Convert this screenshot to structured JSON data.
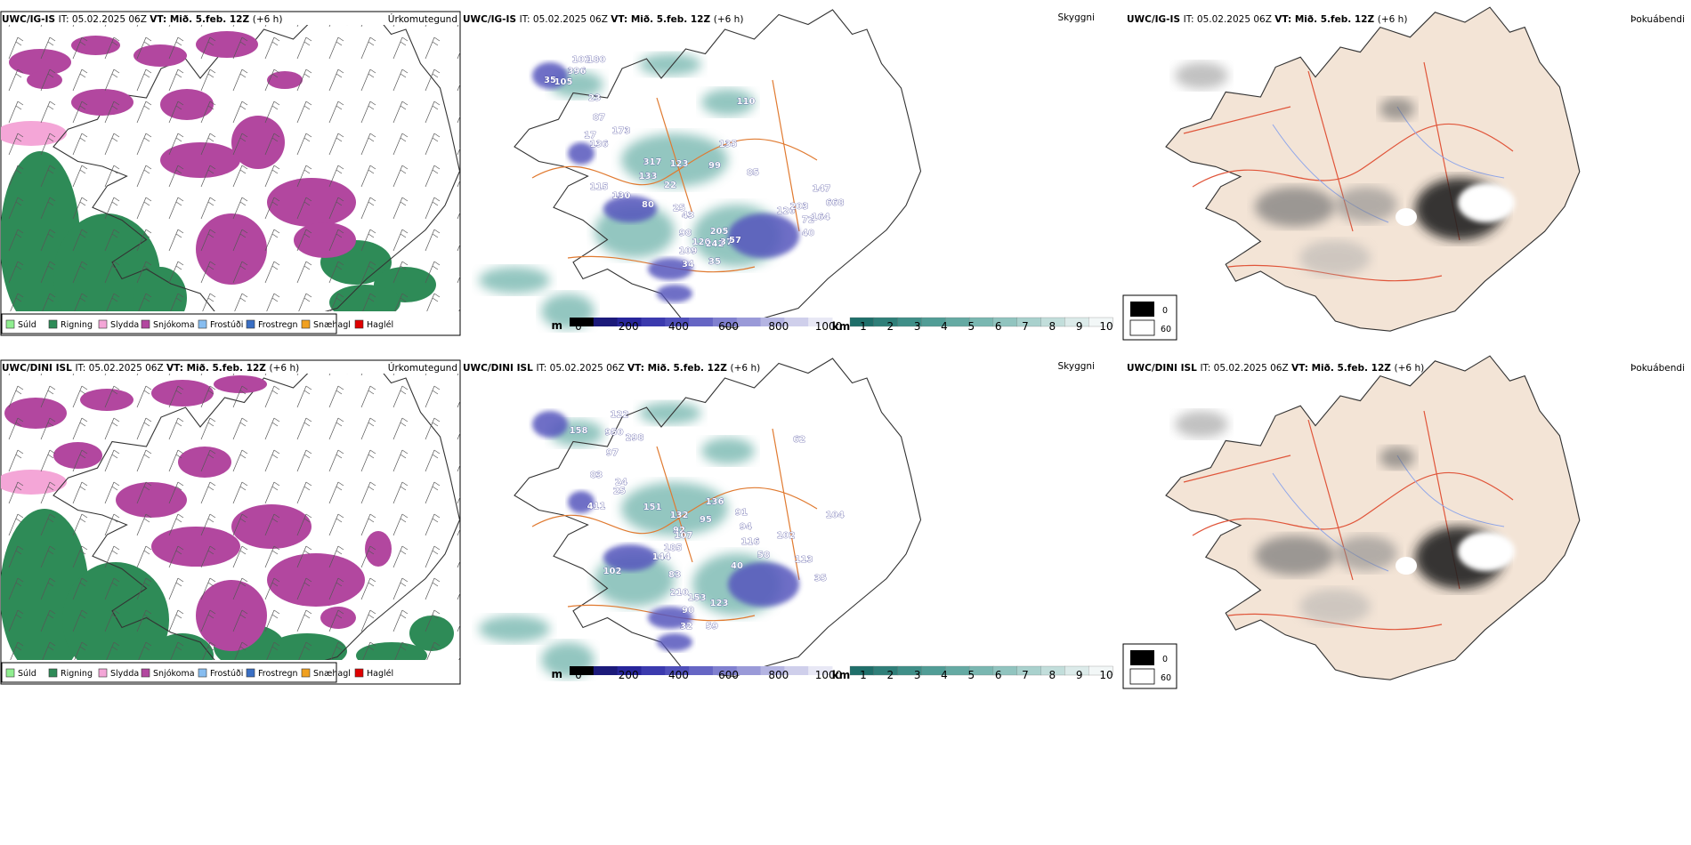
{
  "rows": [
    {
      "model": "UWC/IG-IS",
      "it_label": "IT:",
      "it_value": "05.02.2025 06Z",
      "vt_label": "VT:",
      "vt_value": "Mið. 5.feb. 12Z",
      "offset": "(+6 h)",
      "cloud_labels": [
        "101",
        "180",
        "396",
        "35",
        "105",
        "23",
        "87",
        "17",
        "173",
        "136",
        "317",
        "123",
        "99",
        "133",
        "22",
        "110",
        "85",
        "115",
        "130",
        "80",
        "25",
        "135",
        "43",
        "147",
        "126",
        "203",
        "72",
        "164",
        "668",
        "205",
        "98",
        "120",
        "242",
        "37",
        "57",
        "40",
        "109",
        "34",
        "35"
      ]
    },
    {
      "model": "UWC/DINI ISL",
      "it_label": "IT:",
      "it_value": "05.02.2025 06Z",
      "vt_label": "VT:",
      "vt_value": "Mið. 5.feb. 12Z",
      "offset": "(+6 h)",
      "cloud_labels": [
        "122",
        "158",
        "950",
        "298",
        "97",
        "83",
        "25",
        "411",
        "24",
        "151",
        "132",
        "95",
        "91",
        "94",
        "92",
        "107",
        "136",
        "62",
        "116",
        "144",
        "102",
        "83",
        "58",
        "113",
        "35",
        "210",
        "153",
        "123",
        "102",
        "90",
        "32",
        "59",
        "104",
        "185",
        "40"
      ]
    }
  ],
  "panel_titles": {
    "precip": "Úrkomutegund",
    "cloud": "Skyggni",
    "fog": "Þokuábendi"
  },
  "precip_legend": [
    {
      "label": "Súld",
      "color": "#90ee90"
    },
    {
      "label": "Rigning",
      "color": "#2e8b57"
    },
    {
      "label": "Slydda",
      "color": "#f4a6d7"
    },
    {
      "label": "Snjókoma",
      "color": "#b2479f"
    },
    {
      "label": "Frostúði",
      "color": "#87bdf0"
    },
    {
      "label": "Frostregn",
      "color": "#3a6fc4"
    },
    {
      "label": "Snæhagl",
      "color": "#f0a020"
    },
    {
      "label": "Haglél",
      "color": "#e00000"
    }
  ],
  "colorbars": {
    "ceiling": {
      "unit": "m",
      "ticks": [
        "0",
        "200",
        "400",
        "600",
        "800",
        "1000"
      ],
      "colors": [
        "#000000",
        "#1c1a7a",
        "#27259a",
        "#3b3aae",
        "#4f4fba",
        "#6666c4",
        "#8080cf",
        "#9a9ad8",
        "#b4b4e2",
        "#cfcfeb",
        "#e8e8f5"
      ]
    },
    "visibility": {
      "unit": "km",
      "ticks": [
        "1",
        "2",
        "3",
        "4",
        "5",
        "6",
        "7",
        "8",
        "9",
        "10"
      ],
      "colors": [
        "#1f6f6a",
        "#2f7f79",
        "#3f8f88",
        "#519d96",
        "#65aaa3",
        "#7ab7b1",
        "#91c4bf",
        "#a9d1cd",
        "#c2dedb",
        "#dcebea",
        "#f2f7f7"
      ]
    },
    "fog": {
      "labels": [
        "0",
        "60"
      ]
    }
  },
  "colors": {
    "rain": "#2e8b57",
    "snow": "#b2479f",
    "sleet": "#f4a6d7",
    "land_fog": "#f3e4d6",
    "roads": "#e07a30",
    "roads_fog": "#e0553a",
    "rivers": "#8fa6ea"
  }
}
